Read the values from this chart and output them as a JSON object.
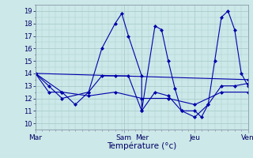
{
  "title": "Température (°c)",
  "ylabel_ticks": [
    10,
    11,
    12,
    13,
    14,
    15,
    16,
    17,
    18,
    19
  ],
  "ylim": [
    9.5,
    19.5
  ],
  "xlim": [
    0,
    96
  ],
  "day_ticks": [
    0,
    40,
    48,
    72,
    96
  ],
  "day_labels": [
    "Mar",
    "Sam",
    "Mer",
    "Jeu",
    "Ven"
  ],
  "background_color": "#cce8e8",
  "grid_color": "#aacccc",
  "line_color": "#0000aa",
  "series": [
    [
      0,
      14.0,
      6,
      13.0,
      12,
      12.0,
      24,
      12.5,
      30,
      16.0,
      36,
      18.0,
      39,
      18.8,
      42,
      17.0,
      48,
      13.8,
      48,
      11.0,
      54,
      17.8,
      57,
      17.5,
      60,
      15.0,
      63,
      12.8,
      66,
      11.0,
      72,
      11.0,
      75,
      10.5,
      78,
      11.5,
      81,
      15.0,
      84,
      18.5,
      87,
      19.0,
      90,
      17.5,
      93,
      14.0,
      96,
      13.0
    ],
    [
      0,
      14.0,
      6,
      12.5,
      12,
      12.5,
      18,
      11.5,
      24,
      12.5,
      30,
      13.8,
      36,
      13.8,
      42,
      13.8,
      48,
      11.0,
      54,
      12.5,
      60,
      12.2,
      66,
      11.0,
      72,
      10.5,
      78,
      11.5,
      84,
      13.0,
      90,
      13.0,
      96,
      13.2
    ],
    [
      0,
      14.0,
      12,
      12.5,
      24,
      12.2,
      36,
      12.5,
      48,
      12.0,
      60,
      12.0,
      72,
      11.5,
      84,
      12.5,
      96,
      12.5
    ],
    [
      0,
      14.0,
      96,
      13.5
    ]
  ]
}
